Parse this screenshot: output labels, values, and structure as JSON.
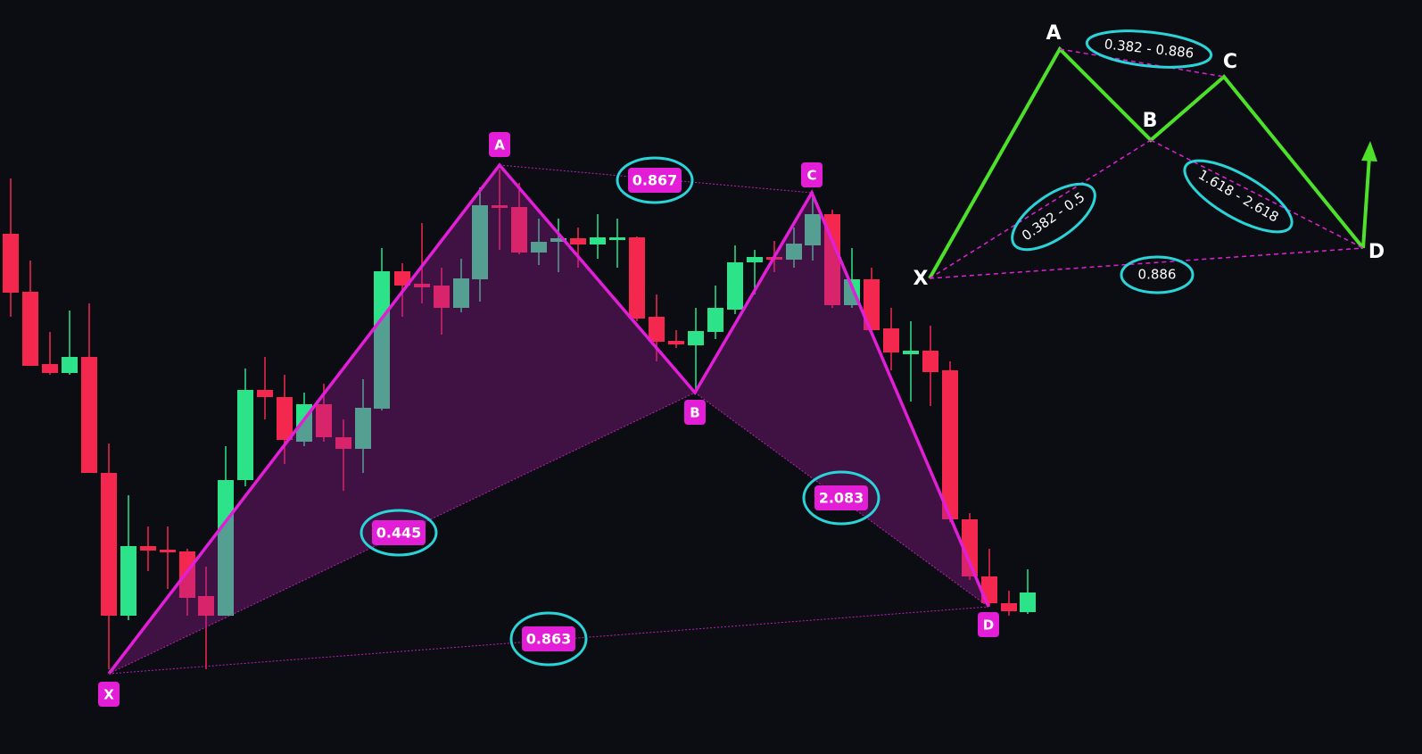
{
  "main_pattern": {
    "points": [
      "X",
      "A",
      "B",
      "C",
      "D"
    ],
    "ratios": {
      "xb": "0.445",
      "ac": "0.867",
      "bd": "2.083",
      "xd": "0.863"
    }
  },
  "reference_pattern": {
    "points": [
      "X",
      "A",
      "B",
      "C",
      "D"
    ],
    "ratios": {
      "xb": "0.382 - 0.5",
      "ac": "0.382 - 0.886",
      "bd": "1.618 - 2.618",
      "xd": "0.886"
    }
  }
}
